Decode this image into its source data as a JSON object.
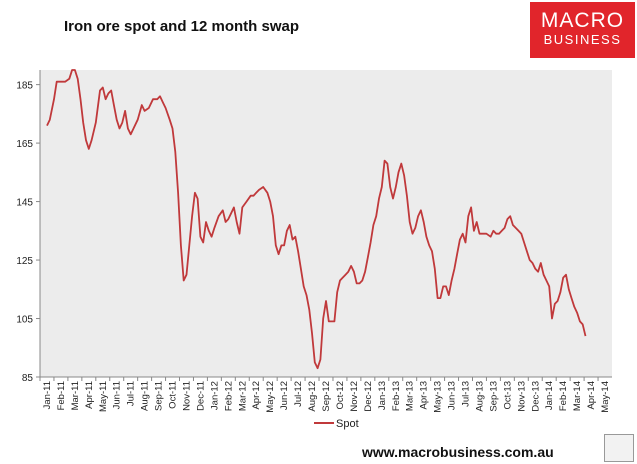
{
  "title": "Iron ore spot and 12 month swap",
  "logo": {
    "line1": "MACRO",
    "line2": "BUSINESS"
  },
  "website": "www.macrobusiness.com.au",
  "colors": {
    "series": "#c0393b",
    "plot_bg": "#ececec",
    "logo_bg": "#e1252b"
  },
  "chart_data": {
    "type": "line",
    "title": "Iron ore spot and 12 month swap",
    "ylim": [
      85,
      190
    ],
    "yticks": [
      85,
      105,
      125,
      145,
      165,
      185
    ],
    "grid": false,
    "legend": "bottom-center",
    "x_categories": [
      "Jan-11",
      "Feb-11",
      "Mar-11",
      "Apr-11",
      "May-11",
      "Jun-11",
      "Jul-11",
      "Aug-11",
      "Sep-11",
      "Oct-11",
      "Nov-11",
      "Dec-11",
      "Jan-12",
      "Feb-12",
      "Mar-12",
      "Apr-12",
      "May-12",
      "Jun-12",
      "Jul-12",
      "Aug-12",
      "Sep-12",
      "Oct-12",
      "Nov-12",
      "Dec-12",
      "Jan-13",
      "Feb-13",
      "Mar-13",
      "Apr-13",
      "May-13",
      "Jun-13",
      "Jul-13",
      "Aug-13",
      "Sep-13",
      "Oct-13",
      "Nov-13",
      "Dec-13",
      "Jan-14",
      "Feb-14",
      "Mar-14",
      "Apr-14",
      "May-14"
    ],
    "series": [
      {
        "name": "Spot",
        "points": [
          [
            0,
            171
          ],
          [
            0.2,
            173
          ],
          [
            0.5,
            180
          ],
          [
            0.7,
            186
          ],
          [
            1.0,
            186
          ],
          [
            1.3,
            186
          ],
          [
            1.6,
            187
          ],
          [
            1.8,
            190
          ],
          [
            2.0,
            190
          ],
          [
            2.2,
            187
          ],
          [
            2.4,
            180
          ],
          [
            2.6,
            172
          ],
          [
            2.8,
            166
          ],
          [
            3.0,
            163
          ],
          [
            3.2,
            166
          ],
          [
            3.5,
            172
          ],
          [
            3.8,
            183
          ],
          [
            4.0,
            184
          ],
          [
            4.2,
            180
          ],
          [
            4.4,
            182
          ],
          [
            4.6,
            183
          ],
          [
            4.8,
            178
          ],
          [
            5.0,
            173
          ],
          [
            5.2,
            170
          ],
          [
            5.4,
            172
          ],
          [
            5.6,
            176
          ],
          [
            5.8,
            170
          ],
          [
            6.0,
            168
          ],
          [
            6.2,
            170
          ],
          [
            6.5,
            173
          ],
          [
            6.8,
            178
          ],
          [
            7.0,
            176
          ],
          [
            7.3,
            177
          ],
          [
            7.6,
            180
          ],
          [
            7.9,
            180
          ],
          [
            8.1,
            181
          ],
          [
            8.3,
            179
          ],
          [
            8.5,
            177
          ],
          [
            8.8,
            173
          ],
          [
            9.0,
            170
          ],
          [
            9.2,
            162
          ],
          [
            9.4,
            148
          ],
          [
            9.6,
            130
          ],
          [
            9.8,
            118
          ],
          [
            10.0,
            120
          ],
          [
            10.2,
            130
          ],
          [
            10.4,
            140
          ],
          [
            10.6,
            148
          ],
          [
            10.8,
            146
          ],
          [
            11.0,
            133
          ],
          [
            11.2,
            131
          ],
          [
            11.4,
            138
          ],
          [
            11.6,
            135
          ],
          [
            11.8,
            133
          ],
          [
            12.0,
            136
          ],
          [
            12.3,
            140
          ],
          [
            12.6,
            142
          ],
          [
            12.8,
            138
          ],
          [
            13.0,
            139
          ],
          [
            13.2,
            141
          ],
          [
            13.4,
            143
          ],
          [
            13.6,
            138
          ],
          [
            13.8,
            134
          ],
          [
            14.0,
            143
          ],
          [
            14.3,
            145
          ],
          [
            14.6,
            147
          ],
          [
            14.8,
            147
          ],
          [
            15.0,
            148
          ],
          [
            15.2,
            149
          ],
          [
            15.5,
            150
          ],
          [
            15.8,
            148
          ],
          [
            16.0,
            145
          ],
          [
            16.2,
            140
          ],
          [
            16.4,
            130
          ],
          [
            16.6,
            127
          ],
          [
            16.8,
            130
          ],
          [
            17.0,
            130
          ],
          [
            17.2,
            135
          ],
          [
            17.4,
            137
          ],
          [
            17.6,
            132
          ],
          [
            17.8,
            133
          ],
          [
            18.0,
            128
          ],
          [
            18.2,
            122
          ],
          [
            18.4,
            116
          ],
          [
            18.6,
            113
          ],
          [
            18.8,
            108
          ],
          [
            19.0,
            100
          ],
          [
            19.2,
            90
          ],
          [
            19.4,
            88
          ],
          [
            19.6,
            91
          ],
          [
            19.8,
            105
          ],
          [
            20.0,
            111
          ],
          [
            20.2,
            104
          ],
          [
            20.4,
            104
          ],
          [
            20.6,
            104
          ],
          [
            20.8,
            114
          ],
          [
            21.0,
            118
          ],
          [
            21.2,
            119
          ],
          [
            21.4,
            120
          ],
          [
            21.6,
            121
          ],
          [
            21.8,
            123
          ],
          [
            22.0,
            121
          ],
          [
            22.2,
            117
          ],
          [
            22.4,
            117
          ],
          [
            22.6,
            118
          ],
          [
            22.8,
            121
          ],
          [
            23.0,
            126
          ],
          [
            23.2,
            131
          ],
          [
            23.4,
            137
          ],
          [
            23.6,
            140
          ],
          [
            23.8,
            146
          ],
          [
            24.0,
            150
          ],
          [
            24.2,
            159
          ],
          [
            24.4,
            158
          ],
          [
            24.6,
            150
          ],
          [
            24.8,
            146
          ],
          [
            25.0,
            150
          ],
          [
            25.2,
            155
          ],
          [
            25.4,
            158
          ],
          [
            25.6,
            154
          ],
          [
            25.8,
            147
          ],
          [
            26.0,
            138
          ],
          [
            26.2,
            134
          ],
          [
            26.4,
            136
          ],
          [
            26.6,
            140
          ],
          [
            26.8,
            142
          ],
          [
            27.0,
            138
          ],
          [
            27.2,
            133
          ],
          [
            27.4,
            130
          ],
          [
            27.6,
            128
          ],
          [
            27.8,
            122
          ],
          [
            28.0,
            112
          ],
          [
            28.2,
            112
          ],
          [
            28.4,
            116
          ],
          [
            28.6,
            116
          ],
          [
            28.8,
            113
          ],
          [
            29.0,
            118
          ],
          [
            29.2,
            122
          ],
          [
            29.4,
            127
          ],
          [
            29.6,
            132
          ],
          [
            29.8,
            134
          ],
          [
            30.0,
            131
          ],
          [
            30.2,
            140
          ],
          [
            30.4,
            143
          ],
          [
            30.6,
            135
          ],
          [
            30.8,
            138
          ],
          [
            31.0,
            134
          ],
          [
            31.2,
            134
          ],
          [
            31.5,
            134
          ],
          [
            31.8,
            133
          ],
          [
            32.0,
            135
          ],
          [
            32.2,
            134
          ],
          [
            32.4,
            134
          ],
          [
            32.6,
            135
          ],
          [
            32.8,
            136
          ],
          [
            33.0,
            139
          ],
          [
            33.2,
            140
          ],
          [
            33.4,
            137
          ],
          [
            33.6,
            136
          ],
          [
            33.8,
            135
          ],
          [
            34.0,
            134
          ],
          [
            34.2,
            131
          ],
          [
            34.4,
            128
          ],
          [
            34.6,
            125
          ],
          [
            34.8,
            124
          ],
          [
            35.0,
            122
          ],
          [
            35.2,
            121
          ],
          [
            35.4,
            124
          ],
          [
            35.6,
            120
          ],
          [
            35.8,
            118
          ],
          [
            36.0,
            116
          ],
          [
            36.2,
            105
          ],
          [
            36.4,
            110
          ],
          [
            36.6,
            111
          ],
          [
            36.8,
            114
          ],
          [
            37.0,
            119
          ],
          [
            37.2,
            120
          ],
          [
            37.4,
            115
          ],
          [
            37.6,
            112
          ],
          [
            37.8,
            109
          ],
          [
            38.0,
            107
          ],
          [
            38.2,
            104
          ],
          [
            38.4,
            103
          ],
          [
            38.6,
            99
          ]
        ]
      }
    ]
  }
}
